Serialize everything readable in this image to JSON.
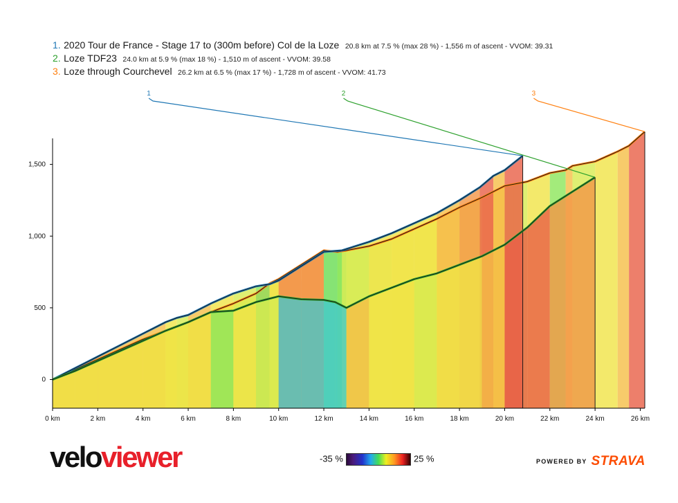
{
  "legend": [
    {
      "num": "1.",
      "name": "2020 Tour de France - Stage 17 to (300m before) Col de la Loze",
      "stats": "20.8 km at 7.5 % (max 28 %) - 1,556 m of ascent - VVOM: 39.31",
      "color": "#1f77b4"
    },
    {
      "num": "2.",
      "name": "Loze TDF23",
      "stats": "24.0 km at 5.9 % (max 18 %) - 1,510 m of ascent - VVOM: 39.58",
      "color": "#2ca02c"
    },
    {
      "num": "3.",
      "name": "Loze through Courchevel",
      "stats": "26.2 km at 6.5 % (max 17 %) - 1,728 m of ascent - VVOM: 41.73",
      "color": "#ff7f0e"
    }
  ],
  "branding": {
    "viewer_part1": "velo",
    "viewer_part2": "viewer",
    "powered_by": "POWERED BY",
    "strava": "STRAVA"
  },
  "gradient_scale": {
    "min_label": "-35 %",
    "max_label": "25 %"
  },
  "chart_data": {
    "type": "area",
    "title": "",
    "xlabel": "",
    "ylabel": "",
    "xlim": [
      0,
      26.2
    ],
    "ylim": [
      -200,
      1720
    ],
    "x_ticks": [
      0,
      2,
      4,
      6,
      8,
      10,
      12,
      14,
      16,
      18,
      20,
      22,
      24,
      26
    ],
    "x_tick_labels": [
      "0 km",
      "2 km",
      "4 km",
      "6 km",
      "8 km",
      "10 km",
      "12 km",
      "14 km",
      "16 km",
      "18 km",
      "20 km",
      "22 km",
      "24 km",
      "26 km"
    ],
    "y_ticks": [
      0,
      500,
      1000,
      1500
    ],
    "y_tick_labels": [
      "0",
      "500",
      "1,000",
      "1,500"
    ],
    "grid": false,
    "fill_color_meaning": "gradient %",
    "series": [
      {
        "name": "1",
        "color": "#1f77b4",
        "x": [
          0,
          1,
          2,
          3,
          4,
          5,
          5.5,
          6,
          7,
          8,
          9,
          9.6,
          10,
          11,
          12,
          12.8,
          14,
          15,
          16,
          17,
          18,
          18.9,
          19.5,
          20,
          20.4,
          20.8
        ],
        "y": [
          0,
          80,
          160,
          240,
          320,
          400,
          430,
          450,
          530,
          600,
          650,
          665,
          690,
          790,
          890,
          900,
          960,
          1020,
          1090,
          1160,
          1250,
          1340,
          1420,
          1460,
          1510,
          1560
        ],
        "callout_at": [
          4.3,
          2.0
        ]
      },
      {
        "name": "2",
        "color": "#2ca02c",
        "x": [
          0,
          1,
          2,
          3,
          4,
          5,
          6,
          7,
          8,
          9,
          10,
          11,
          12,
          12.5,
          13,
          14,
          15,
          16,
          17,
          18,
          19,
          20,
          21,
          22,
          23,
          24
        ],
        "y": [
          0,
          60,
          130,
          200,
          270,
          340,
          400,
          470,
          480,
          540,
          580,
          560,
          555,
          540,
          500,
          580,
          640,
          700,
          740,
          800,
          860,
          940,
          1060,
          1210,
          1310,
          1410
        ],
        "callout_at": [
          13.0,
          2.0
        ]
      },
      {
        "name": "3",
        "color": "#ff7f0e",
        "x": [
          0,
          1,
          2,
          3,
          4,
          5,
          6,
          7,
          8,
          9,
          9.6,
          10,
          11,
          12,
          12.6,
          13,
          14,
          15,
          16,
          17,
          18,
          19,
          20,
          21,
          22,
          22.7,
          23,
          24,
          25,
          25.5,
          26.2
        ],
        "y": [
          0,
          70,
          140,
          210,
          280,
          340,
          400,
          470,
          530,
          600,
          670,
          700,
          800,
          900,
          890,
          900,
          930,
          980,
          1050,
          1120,
          1200,
          1270,
          1350,
          1380,
          1440,
          1460,
          1490,
          1520,
          1590,
          1630,
          1728
        ],
        "callout_at": [
          21.5,
          2.0
        ]
      }
    ]
  }
}
